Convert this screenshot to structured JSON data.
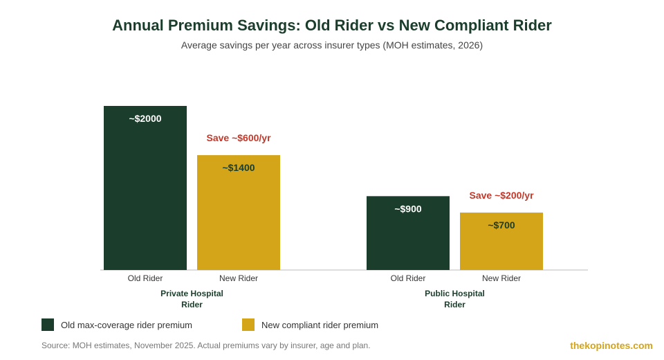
{
  "header": {
    "title": "Annual Premium Savings: Old Rider vs New Compliant Rider",
    "subtitle": "Average savings per year across insurer types (MOH estimates, 2026)"
  },
  "colors": {
    "old": "#1b3d2c",
    "new": "#d4a419",
    "savings_text": "#c0392b",
    "title": "#1b3d2c"
  },
  "chart_data": {
    "type": "bar",
    "title": "Annual Premium Savings: Old Rider vs New Compliant Rider",
    "subtitle": "Average savings per year across insurer types (MOH estimates, 2026)",
    "groups": [
      {
        "name": "Private Hospital Rider",
        "name_lines": [
          "Private Hospital",
          "Rider"
        ],
        "savings_label": "Save ~$600/yr",
        "bars": [
          {
            "category": "Old Rider",
            "value": 2000,
            "label": "~$2000",
            "series": "old"
          },
          {
            "category": "New Rider",
            "value": 1400,
            "label": "~$1400",
            "series": "new"
          }
        ]
      },
      {
        "name": "Public Hospital Rider",
        "name_lines": [
          "Public Hospital",
          "Rider"
        ],
        "savings_label": "Save ~$200/yr",
        "bars": [
          {
            "category": "Old Rider",
            "value": 900,
            "label": "~$900",
            "series": "old"
          },
          {
            "category": "New Rider",
            "value": 700,
            "label": "~$700",
            "series": "new"
          }
        ]
      }
    ],
    "series": [
      {
        "key": "old",
        "name": "Old max-coverage rider premium",
        "values": [
          2000,
          900
        ]
      },
      {
        "key": "new",
        "name": "New compliant rider premium",
        "values": [
          1400,
          700
        ]
      }
    ],
    "ylim": [
      0,
      2000
    ],
    "grid": false,
    "legend_position": "bottom-left"
  },
  "footer": {
    "source": "Source: MOH estimates, November 2025. Actual premiums vary by insurer, age and plan.",
    "brand": "thekopinotes.com"
  }
}
